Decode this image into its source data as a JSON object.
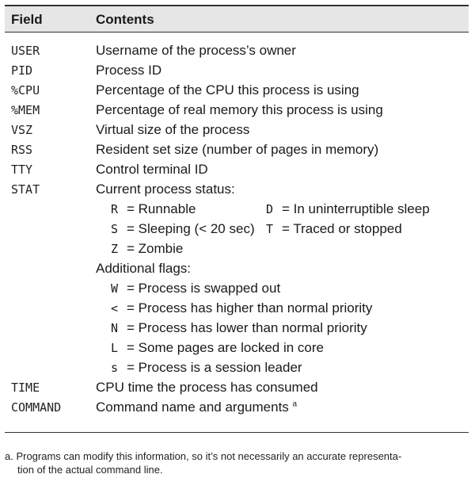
{
  "table": {
    "header": {
      "field": "Field",
      "contents": "Contents"
    },
    "rows": [
      {
        "code": "USER",
        "desc": "Username of the process’s owner"
      },
      {
        "code": "PID",
        "desc": "Process ID"
      },
      {
        "code": "%CPU",
        "desc": "Percentage of the CPU this process is using"
      },
      {
        "code": "%MEM",
        "desc": "Percentage of real memory this process is using"
      },
      {
        "code": "VSZ",
        "desc": "Virtual size of the process"
      },
      {
        "code": "RSS",
        "desc": "Resident set size (number of pages in memory)"
      },
      {
        "code": "TTY",
        "desc": "Control terminal ID"
      },
      {
        "code": "STAT",
        "desc": "Current process status:"
      }
    ],
    "status_codes": [
      {
        "code": "R",
        "text": "= Runnable"
      },
      {
        "code": "D",
        "text": "= In uninterruptible sleep"
      },
      {
        "code": "S",
        "text": "= Sleeping (< 20 sec)"
      },
      {
        "code": "T",
        "text": "= Traced or stopped"
      },
      {
        "code": "Z",
        "text": "= Zombie"
      }
    ],
    "additional_flags_label": "Additional flags:",
    "flags": [
      {
        "code": "W",
        "text": "= Process is swapped out"
      },
      {
        "code": "<",
        "text": "= Process has higher than normal priority"
      },
      {
        "code": "N",
        "text": "= Process has lower than normal priority"
      },
      {
        "code": "L",
        "text": "= Some pages are locked in core"
      },
      {
        "code": "s",
        "text": "= Process is a session leader"
      }
    ],
    "rows_end": [
      {
        "code": "TIME",
        "desc": "CPU time the process has consumed"
      },
      {
        "code": "COMMAND",
        "desc": "Command name and arguments",
        "footnote_mark": "a"
      }
    ]
  },
  "footnote": {
    "line1": "a. Programs can modify this information, so it’s not necessarily an accurate representa-",
    "line2": "tion of the actual command line."
  }
}
